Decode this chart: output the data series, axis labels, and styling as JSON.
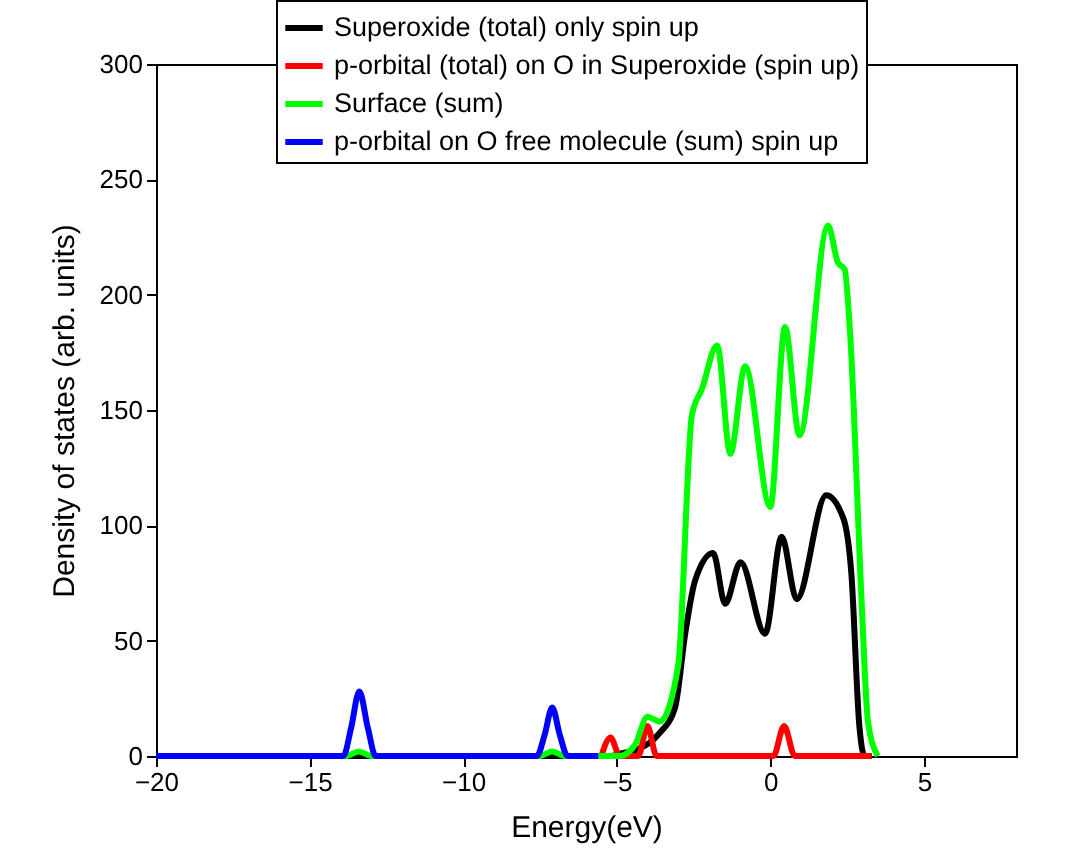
{
  "chart_data": {
    "type": "line",
    "xlabel": "Energy(eV)",
    "ylabel": "Density of states (arb. units)",
    "xlim": [
      -20,
      8
    ],
    "ylim": [
      0,
      300
    ],
    "xticks": [
      -20,
      -15,
      -10,
      -5,
      0,
      5
    ],
    "yticks": [
      0,
      50,
      100,
      150,
      200,
      250,
      300
    ],
    "grid": false,
    "legend": "top right",
    "marker": "none",
    "line_style": "solid",
    "series": [
      {
        "name": "Superoxide (total) only spin up",
        "color": "#000000",
        "x": [
          -20,
          -5.2,
          -4.9,
          -4.3,
          -3.6,
          -3.1,
          -2.77,
          -2.45,
          -1.86,
          -1.47,
          -0.97,
          -0.17,
          0.37,
          0.86,
          1.82,
          2.38,
          2.64,
          2.9,
          3.07,
          3.3
        ],
        "values": [
          0,
          0,
          1,
          3,
          10,
          21,
          53,
          76,
          88,
          66,
          84,
          53,
          95,
          68,
          113,
          103,
          79,
          13,
          0,
          0
        ]
      },
      {
        "name": "p-orbital (total) on O in Superoxide (spin up)",
        "color": "#ff0000",
        "x": [
          -5.5,
          -5.2,
          -4.9,
          -4.3,
          -4.0,
          -3.7,
          0.1,
          0.45,
          0.8,
          3.3
        ],
        "values": [
          0,
          8,
          0,
          0,
          13,
          0,
          0,
          13,
          0,
          0
        ]
      },
      {
        "name": "Surface (sum)",
        "color": "#00ff00",
        "x": [
          -20,
          -13.8,
          -13.4,
          -13.0,
          -7.5,
          -7.1,
          -6.7,
          -4.9,
          -4.4,
          -4.0,
          -3.6,
          -3.0,
          -2.55,
          -2.23,
          -1.73,
          -1.3,
          -0.82,
          0.0,
          0.48,
          0.95,
          1.88,
          2.2,
          2.42,
          2.6,
          2.97,
          3.18,
          3.5
        ],
        "values": [
          0,
          0,
          2,
          0,
          0,
          2,
          0,
          0,
          5,
          17,
          15,
          39,
          148,
          159,
          178,
          131,
          169,
          108,
          186,
          139,
          230,
          214,
          211,
          183,
          68,
          15,
          0
        ]
      },
      {
        "name": " p-orbital on O free molecule (sum) spin up",
        "color": "#0000ff",
        "x": [
          -20,
          -13.9,
          -13.65,
          -13.38,
          -13.1,
          -12.85,
          -7.6,
          -7.35,
          -7.1,
          -6.85,
          -6.6,
          -5.6
        ],
        "values": [
          0,
          0,
          12,
          28,
          12,
          0,
          0,
          9,
          21,
          9,
          0,
          0
        ]
      }
    ]
  }
}
